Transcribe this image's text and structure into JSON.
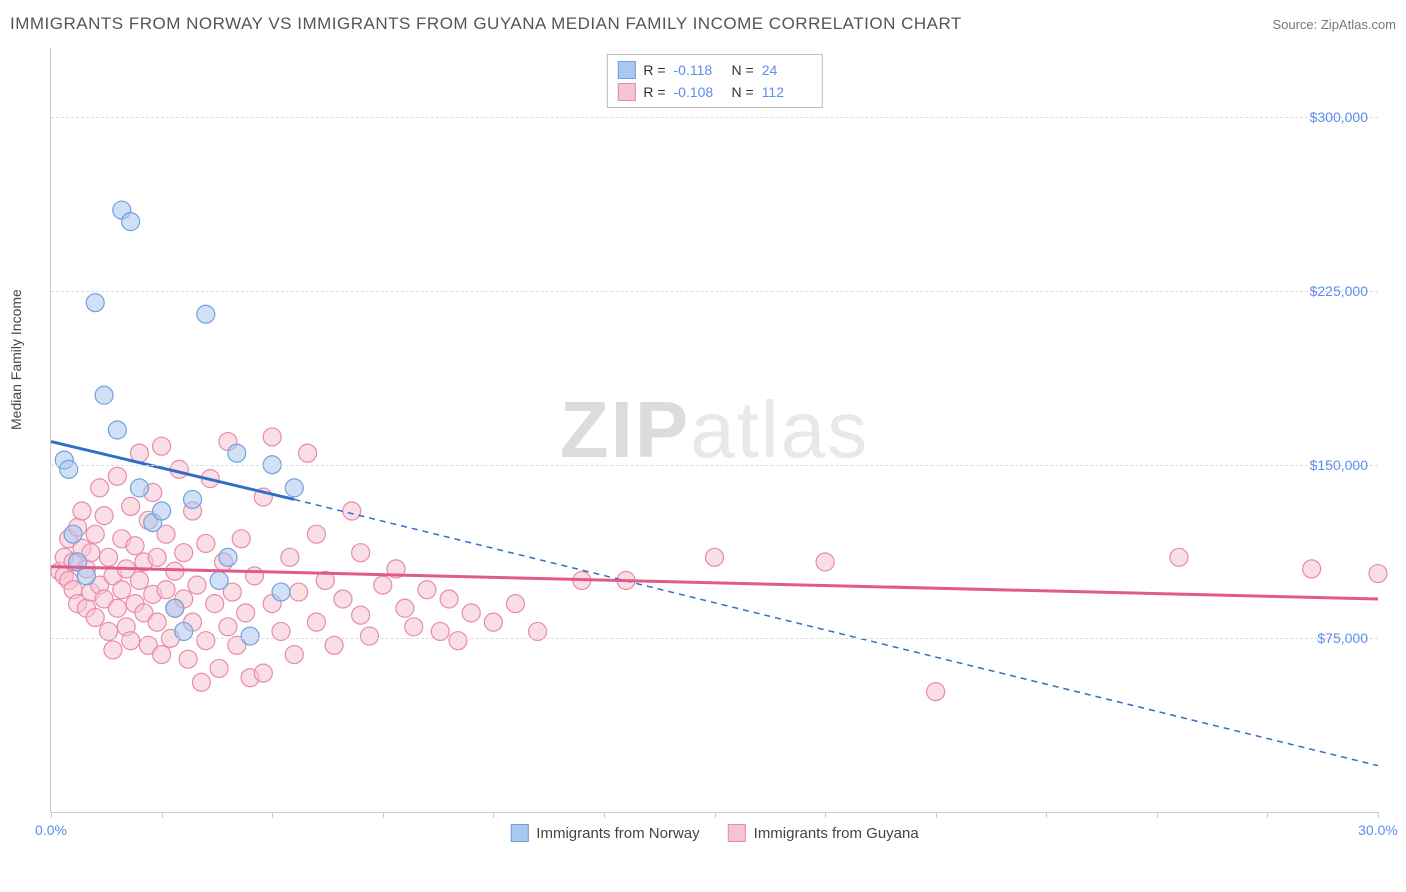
{
  "title": "IMMIGRANTS FROM NORWAY VS IMMIGRANTS FROM GUYANA MEDIAN FAMILY INCOME CORRELATION CHART",
  "source": "Source: ZipAtlas.com",
  "watermark": {
    "bold": "ZIP",
    "light": "atlas"
  },
  "ylabel": "Median Family Income",
  "chart": {
    "type": "scatter",
    "xlim": [
      0,
      30
    ],
    "ylim": [
      0,
      330000
    ],
    "x_unit": "%",
    "y_unit": "$",
    "ytick_values": [
      75000,
      150000,
      225000,
      300000
    ],
    "ytick_labels": [
      "$75,000",
      "$150,000",
      "$225,000",
      "$300,000"
    ],
    "xtick_values": [
      0,
      2.5,
      5,
      7.5,
      10,
      12.5,
      15,
      17.5,
      20,
      22.5,
      25,
      27.5,
      30
    ],
    "xtick_label_left": "0.0%",
    "xtick_label_right": "30.0%",
    "background_color": "#ffffff",
    "grid_color": "#dddddd",
    "marker_radius": 9,
    "marker_opacity": 0.55,
    "line_width_solid": 3,
    "line_width_dash": 1.5
  },
  "series": [
    {
      "name": "Immigrants from Norway",
      "color_fill": "#a9c7ef",
      "color_stroke": "#6fa1dd",
      "line_color": "#2f6fc7",
      "R": "-0.118",
      "N": "24",
      "trend": {
        "x1": 0,
        "y1": 160000,
        "x2": 5.5,
        "y2": 135000,
        "extend_x2": 30,
        "extend_y2": 20000
      },
      "points": [
        [
          0.3,
          152000
        ],
        [
          0.4,
          148000
        ],
        [
          0.5,
          120000
        ],
        [
          0.6,
          108000
        ],
        [
          0.8,
          102000
        ],
        [
          1.0,
          220000
        ],
        [
          1.2,
          180000
        ],
        [
          1.5,
          165000
        ],
        [
          1.6,
          260000
        ],
        [
          1.8,
          255000
        ],
        [
          2.0,
          140000
        ],
        [
          2.3,
          125000
        ],
        [
          2.5,
          130000
        ],
        [
          2.8,
          88000
        ],
        [
          3.0,
          78000
        ],
        [
          3.2,
          135000
        ],
        [
          3.5,
          215000
        ],
        [
          3.8,
          100000
        ],
        [
          4.0,
          110000
        ],
        [
          4.2,
          155000
        ],
        [
          4.5,
          76000
        ],
        [
          5.0,
          150000
        ],
        [
          5.2,
          95000
        ],
        [
          5.5,
          140000
        ]
      ]
    },
    {
      "name": "Immigrants from Guyana",
      "color_fill": "#f6c3d1",
      "color_stroke": "#e88ba7",
      "line_color": "#e15b8a",
      "R": "-0.108",
      "N": "112",
      "trend": {
        "x1": 0,
        "y1": 106000,
        "x2": 30,
        "y2": 92000
      },
      "points": [
        [
          0.2,
          104000
        ],
        [
          0.3,
          102000
        ],
        [
          0.3,
          110000
        ],
        [
          0.4,
          100000
        ],
        [
          0.4,
          118000
        ],
        [
          0.5,
          96000
        ],
        [
          0.5,
          108000
        ],
        [
          0.6,
          123000
        ],
        [
          0.6,
          90000
        ],
        [
          0.7,
          114000
        ],
        [
          0.7,
          130000
        ],
        [
          0.8,
          105000
        ],
        [
          0.8,
          88000
        ],
        [
          0.9,
          95000
        ],
        [
          0.9,
          112000
        ],
        [
          1.0,
          120000
        ],
        [
          1.0,
          84000
        ],
        [
          1.1,
          140000
        ],
        [
          1.1,
          98000
        ],
        [
          1.2,
          92000
        ],
        [
          1.2,
          128000
        ],
        [
          1.3,
          78000
        ],
        [
          1.3,
          110000
        ],
        [
          1.4,
          102000
        ],
        [
          1.4,
          70000
        ],
        [
          1.5,
          145000
        ],
        [
          1.5,
          88000
        ],
        [
          1.6,
          96000
        ],
        [
          1.6,
          118000
        ],
        [
          1.7,
          80000
        ],
        [
          1.7,
          105000
        ],
        [
          1.8,
          132000
        ],
        [
          1.8,
          74000
        ],
        [
          1.9,
          90000
        ],
        [
          1.9,
          115000
        ],
        [
          2.0,
          100000
        ],
        [
          2.0,
          155000
        ],
        [
          2.1,
          86000
        ],
        [
          2.1,
          108000
        ],
        [
          2.2,
          72000
        ],
        [
          2.2,
          126000
        ],
        [
          2.3,
          94000
        ],
        [
          2.3,
          138000
        ],
        [
          2.4,
          82000
        ],
        [
          2.4,
          110000
        ],
        [
          2.5,
          158000
        ],
        [
          2.5,
          68000
        ],
        [
          2.6,
          96000
        ],
        [
          2.6,
          120000
        ],
        [
          2.7,
          75000
        ],
        [
          2.8,
          104000
        ],
        [
          2.8,
          88000
        ],
        [
          2.9,
          148000
        ],
        [
          3.0,
          92000
        ],
        [
          3.0,
          112000
        ],
        [
          3.1,
          66000
        ],
        [
          3.2,
          130000
        ],
        [
          3.2,
          82000
        ],
        [
          3.3,
          98000
        ],
        [
          3.4,
          56000
        ],
        [
          3.5,
          116000
        ],
        [
          3.5,
          74000
        ],
        [
          3.6,
          144000
        ],
        [
          3.7,
          90000
        ],
        [
          3.8,
          62000
        ],
        [
          3.9,
          108000
        ],
        [
          4.0,
          80000
        ],
        [
          4.0,
          160000
        ],
        [
          4.1,
          95000
        ],
        [
          4.2,
          72000
        ],
        [
          4.3,
          118000
        ],
        [
          4.4,
          86000
        ],
        [
          4.5,
          58000
        ],
        [
          4.6,
          102000
        ],
        [
          4.8,
          136000
        ],
        [
          4.8,
          60000
        ],
        [
          5.0,
          90000
        ],
        [
          5.0,
          162000
        ],
        [
          5.2,
          78000
        ],
        [
          5.4,
          110000
        ],
        [
          5.5,
          68000
        ],
        [
          5.6,
          95000
        ],
        [
          5.8,
          155000
        ],
        [
          6.0,
          82000
        ],
        [
          6.0,
          120000
        ],
        [
          6.2,
          100000
        ],
        [
          6.4,
          72000
        ],
        [
          6.6,
          92000
        ],
        [
          6.8,
          130000
        ],
        [
          7.0,
          85000
        ],
        [
          7.0,
          112000
        ],
        [
          7.2,
          76000
        ],
        [
          7.5,
          98000
        ],
        [
          7.8,
          105000
        ],
        [
          8.0,
          88000
        ],
        [
          8.2,
          80000
        ],
        [
          8.5,
          96000
        ],
        [
          8.8,
          78000
        ],
        [
          9.0,
          92000
        ],
        [
          9.2,
          74000
        ],
        [
          9.5,
          86000
        ],
        [
          10.0,
          82000
        ],
        [
          10.5,
          90000
        ],
        [
          11.0,
          78000
        ],
        [
          12.0,
          100000
        ],
        [
          13.0,
          100000
        ],
        [
          15.0,
          110000
        ],
        [
          17.5,
          108000
        ],
        [
          20.0,
          52000
        ],
        [
          25.5,
          110000
        ],
        [
          28.5,
          105000
        ],
        [
          30.0,
          103000
        ]
      ]
    }
  ],
  "legend_bottom": [
    {
      "label": "Immigrants from Norway",
      "series_idx": 0
    },
    {
      "label": "Immigrants from Guyana",
      "series_idx": 1
    }
  ]
}
